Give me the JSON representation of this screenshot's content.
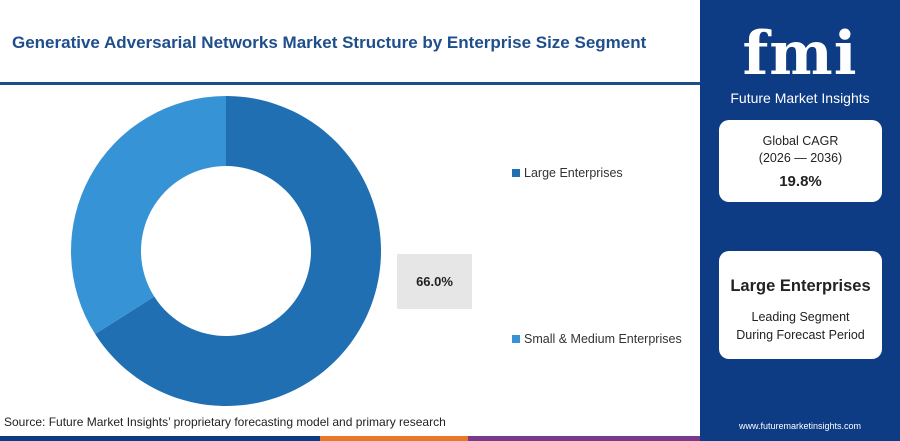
{
  "title": "Generative Adversarial Networks Market Structure by Enterprise Size Segment",
  "chart_data": {
    "type": "pie",
    "categories": [
      "Large Enterprises",
      "Small & Medium Enterprises"
    ],
    "values": [
      66.0,
      34.0
    ],
    "colors": [
      "#1f6fb2",
      "#3694d6"
    ],
    "data_label": "66.0%",
    "legend_placement": "right"
  },
  "source": "Source: Future Market Insights’ proprietary forecasting model and primary research",
  "panel": {
    "logo_mark": "fmi",
    "logo_text": "Future Market Insights",
    "cagr_label_line1": "Global CAGR",
    "cagr_label_line2": "(2026 — 2036)",
    "cagr_value": "19.8%",
    "segment_name": "Large Enterprises",
    "segment_desc_line1": "Leading Segment",
    "segment_desc_line2": "During Forecast Period",
    "website": "www.futuremarketinsights.com"
  },
  "colors": {
    "title": "#1f4e8c",
    "panel_bg": "#0d3b84",
    "bottom_bar": [
      "#0d3b84",
      "#e8792b",
      "#7a3a8c",
      "#0d3b84"
    ]
  }
}
